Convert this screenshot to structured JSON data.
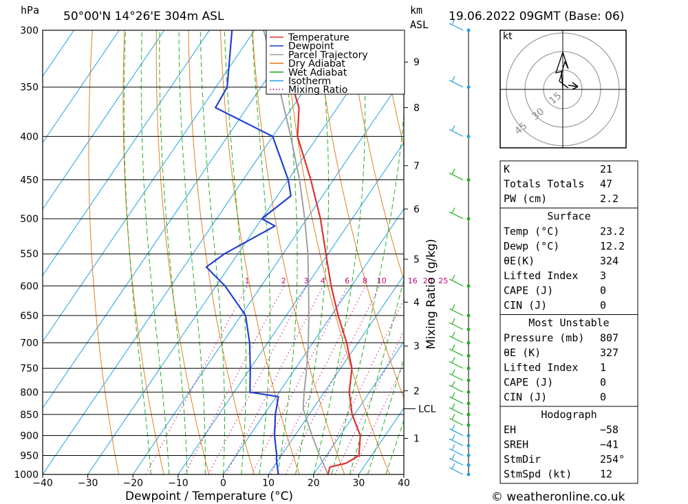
{
  "header": {
    "hpa_label": "hPa",
    "location": "50°00'N  14°26'E  304m  ASL",
    "km_label": "km",
    "asl_label": "ASL",
    "datetime": "19.06.2022  09GMT  (Base: 06)"
  },
  "footer": {
    "xlabel": "Dewpoint / Temperature (°C)",
    "copyright": "© weatheronline.co.uk"
  },
  "colors": {
    "temperature": "#e03030",
    "dewpoint": "#2040d0",
    "parcel": "#a0a0a0",
    "dry_adiabat": "#e08020",
    "wet_adiabat": "#20b020",
    "isotherm": "#20a0e0",
    "mixing_ratio": "#cc0077"
  },
  "legend": [
    {
      "label": "Temperature",
      "key": "temperature",
      "style": "solid"
    },
    {
      "label": "Dewpoint",
      "key": "dewpoint",
      "style": "solid"
    },
    {
      "label": "Parcel Trajectory",
      "key": "parcel",
      "style": "solid"
    },
    {
      "label": "Dry Adiabat",
      "key": "dry_adiabat",
      "style": "solid"
    },
    {
      "label": "Wet Adiabat",
      "key": "wet_adiabat",
      "style": "solid"
    },
    {
      "label": "Isotherm",
      "key": "isotherm",
      "style": "solid"
    },
    {
      "label": "Mixing Ratio",
      "key": "mixing_ratio",
      "style": "dotted"
    }
  ],
  "chart_data": {
    "type": "line",
    "subtype": "skew-T log-P diagram",
    "xlabel": "Dewpoint / Temperature (°C)",
    "ylabel": "hPa",
    "xlim": [
      -40,
      40
    ],
    "ylim": [
      1000,
      300
    ],
    "y_scale": "log",
    "x_ticks": [
      "−40",
      "−30",
      "−20",
      "−10",
      "0",
      "10",
      "20",
      "30",
      "40"
    ],
    "x_tick_values": [
      -40,
      -30,
      -20,
      -10,
      0,
      10,
      20,
      30,
      40
    ],
    "pressure_ticks": [
      300,
      350,
      400,
      450,
      500,
      550,
      600,
      650,
      700,
      750,
      800,
      850,
      900,
      950,
      1000
    ],
    "km_ticks": [
      {
        "label": "1",
        "p": 907
      },
      {
        "label": "2",
        "p": 797
      },
      {
        "label": "3",
        "p": 706
      },
      {
        "label": "4",
        "p": 627
      },
      {
        "label": "5",
        "p": 558
      },
      {
        "label": "6",
        "p": 487
      },
      {
        "label": "7",
        "p": 433
      },
      {
        "label": "8",
        "p": 370
      },
      {
        "label": "9",
        "p": 327
      }
    ],
    "lcl": {
      "label": "LCL",
      "p": 837
    },
    "mixing_ratio_axis_label": "Mixing Ratio (g/kg)",
    "mixing_ratio_values": [
      "1",
      "2",
      "3",
      "4",
      "6",
      "8",
      "10",
      "16",
      "20",
      "25"
    ],
    "series": [
      {
        "name": "Temperature",
        "key": "temperature",
        "points": [
          [
            1000,
            23.2
          ],
          [
            980,
            22.5
          ],
          [
            970,
            25.5
          ],
          [
            950,
            27.2
          ],
          [
            900,
            24.5
          ],
          [
            850,
            19.5
          ],
          [
            800,
            15.5
          ],
          [
            750,
            12.5
          ],
          [
            700,
            7.5
          ],
          [
            650,
            1.5
          ],
          [
            600,
            -4.5
          ],
          [
            550,
            -10.5
          ],
          [
            500,
            -17.0
          ],
          [
            450,
            -25.0
          ],
          [
            400,
            -34.5
          ],
          [
            370,
            -38.5
          ],
          [
            350,
            -43.0
          ],
          [
            300,
            -53.5
          ]
        ]
      },
      {
        "name": "Dewpoint",
        "key": "dewpoint",
        "points": [
          [
            1000,
            12.2
          ],
          [
            960,
            9.5
          ],
          [
            950,
            9.0
          ],
          [
            900,
            5.5
          ],
          [
            850,
            2.5
          ],
          [
            810,
            0.5
          ],
          [
            800,
            -6.5
          ],
          [
            750,
            -10.0
          ],
          [
            700,
            -14.0
          ],
          [
            650,
            -19.0
          ],
          [
            600,
            -28.0
          ],
          [
            570,
            -35.0
          ],
          [
            550,
            -33.0
          ],
          [
            510,
            -26.0
          ],
          [
            500,
            -30.0
          ],
          [
            470,
            -27.0
          ],
          [
            450,
            -30.0
          ],
          [
            400,
            -40.0
          ],
          [
            370,
            -57.0
          ],
          [
            350,
            -57.5
          ],
          [
            300,
            -65.0
          ]
        ]
      },
      {
        "name": "Parcel Trajectory",
        "key": "parcel",
        "points": [
          [
            1000,
            23.2
          ],
          [
            950,
            18.5
          ],
          [
            900,
            13.8
          ],
          [
            837,
            7.8
          ],
          [
            800,
            5.5
          ],
          [
            750,
            2.5
          ],
          [
            700,
            -1.0
          ],
          [
            650,
            -5.0
          ],
          [
            600,
            -9.5
          ],
          [
            550,
            -14.5
          ],
          [
            500,
            -20.5
          ],
          [
            450,
            -27.5
          ],
          [
            400,
            -36.0
          ],
          [
            350,
            -46.0
          ],
          [
            300,
            -58.0
          ]
        ]
      }
    ],
    "wind_barbs": {
      "pressures": [
        1000,
        975,
        950,
        925,
        900,
        875,
        850,
        825,
        800,
        775,
        750,
        725,
        700,
        675,
        650,
        600,
        500,
        450,
        400,
        350,
        300
      ]
    }
  },
  "hodograph": {
    "unit": "kt",
    "rings": [
      "15",
      "30",
      "45"
    ]
  },
  "indices": {
    "rows": [
      {
        "k": "K",
        "v": "21"
      },
      {
        "k": "Totals Totals",
        "v": "47"
      },
      {
        "k": "PW (cm)",
        "v": "2.2"
      }
    ]
  },
  "surface": {
    "title": "Surface",
    "rows": [
      {
        "k": "Temp (°C)",
        "v": "23.2"
      },
      {
        "k": "Dewp (°C)",
        "v": "12.2"
      },
      {
        "k": "θE(K)",
        "v": "324"
      },
      {
        "k": "Lifted Index",
        "v": "3"
      },
      {
        "k": "CAPE (J)",
        "v": "0"
      },
      {
        "k": "CIN (J)",
        "v": "0"
      }
    ]
  },
  "most_unstable": {
    "title": "Most Unstable",
    "rows": [
      {
        "k": "Pressure (mb)",
        "v": "807"
      },
      {
        "k": "θE (K)",
        "v": "327"
      },
      {
        "k": "Lifted Index",
        "v": "1"
      },
      {
        "k": "CAPE (J)",
        "v": "0"
      },
      {
        "k": "CIN (J)",
        "v": "0"
      }
    ]
  },
  "hodograph_table": {
    "title": "Hodograph",
    "rows": [
      {
        "k": "EH",
        "v": "−58"
      },
      {
        "k": "SREH",
        "v": "−41"
      },
      {
        "k": "StmDir",
        "v": "254°"
      },
      {
        "k": "StmSpd (kt)",
        "v": "12"
      }
    ]
  }
}
